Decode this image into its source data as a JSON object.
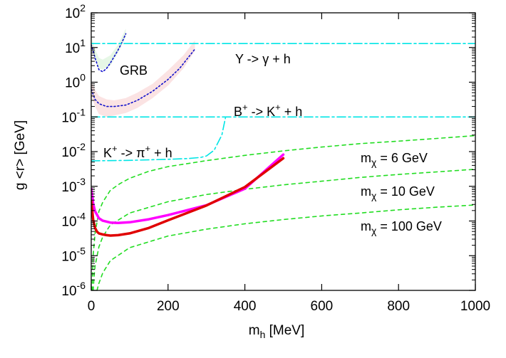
{
  "chart_data": {
    "type": "line",
    "title": "",
    "xlabel": {
      "main": "m",
      "sub": "h",
      "rest": " [MeV]"
    },
    "ylabel": "g <r> [GeV]",
    "xlim": [
      0,
      1000
    ],
    "ylim": [
      1e-06,
      100
    ],
    "yscale": "log",
    "grid": false,
    "legend": "none",
    "x_ticks": [
      {
        "value": 0,
        "label": "0"
      },
      {
        "value": 200,
        "label": "200"
      },
      {
        "value": 400,
        "label": "400"
      },
      {
        "value": 600,
        "label": "600"
      },
      {
        "value": 800,
        "label": "800"
      },
      {
        "value": 1000,
        "label": "1000"
      }
    ],
    "y_ticks": [
      {
        "value": 1e-06,
        "base": "10",
        "exp": "-6"
      },
      {
        "value": 1e-05,
        "base": "10",
        "exp": "-5"
      },
      {
        "value": 0.0001,
        "base": "10",
        "exp": "-4"
      },
      {
        "value": 0.001,
        "base": "10",
        "exp": "-3"
      },
      {
        "value": 0.01,
        "base": "10",
        "exp": "-2"
      },
      {
        "value": 0.1,
        "base": "10",
        "exp": "-1"
      },
      {
        "value": 1,
        "base": "10",
        "exp": "0"
      },
      {
        "value": 10,
        "base": "10",
        "exp": "1"
      },
      {
        "value": 100,
        "base": "10",
        "exp": "2"
      }
    ],
    "colors": {
      "bounds": "#00e5e5",
      "red": "#e00000",
      "magenta": "#ff00ff",
      "green": "#22dd22",
      "blue": "#1010cc",
      "green_band": "#e6f7e6",
      "pink_band": "#fbe3e3"
    },
    "annotations": {
      "upsilon": "Υ -> γ + h",
      "b_decay": {
        "a": "B",
        "a_sup": "+",
        "b": " -> K",
        "b_sup": "+",
        "c": " + h"
      },
      "k_decay": {
        "a": "K",
        "a_sup": "+",
        "b": " -> π",
        "b_sup": "+",
        "c": " + h"
      },
      "grb": "GRB",
      "m6": {
        "main": "m",
        "sub": "χ",
        "rest": " = 6 GeV"
      },
      "m10": {
        "main": "m",
        "sub": "χ",
        "rest": " = 10 GeV"
      },
      "m100": {
        "main": "m",
        "sub": "χ",
        "rest": " = 100 GeV"
      }
    },
    "series": [
      {
        "kind": "band",
        "color_key": "green_band",
        "x": [
          0,
          10,
          20,
          30,
          50,
          70,
          90,
          90,
          70,
          50,
          30,
          20,
          10,
          0
        ],
        "y": [
          12,
          5,
          2.5,
          2.3,
          3,
          7,
          20,
          35,
          12,
          6,
          4.5,
          5,
          9,
          22
        ]
      },
      {
        "kind": "band",
        "color_key": "pink_band",
        "x": [
          0,
          10,
          20,
          40,
          60,
          90,
          120,
          160,
          200,
          240,
          270,
          270,
          240,
          200,
          160,
          120,
          90,
          60,
          40,
          20,
          10,
          0
        ],
        "y": [
          0.4,
          0.2,
          0.12,
          0.1,
          0.11,
          0.13,
          0.18,
          0.35,
          0.8,
          2.5,
          8,
          16,
          6,
          2.2,
          0.9,
          0.5,
          0.35,
          0.3,
          0.32,
          0.4,
          0.6,
          1
        ]
      },
      {
        "kind": "line",
        "dash": "dot",
        "color_key": "blue",
        "x": [
          0,
          5,
          10,
          20,
          30,
          40,
          50,
          60,
          70,
          80,
          90
        ],
        "y": [
          12,
          8,
          5,
          2.3,
          2.0,
          2.5,
          3.6,
          5.5,
          8.5,
          14,
          25
        ]
      },
      {
        "kind": "line",
        "dash": "dot",
        "color_key": "blue",
        "x": [
          0,
          10,
          20,
          40,
          60,
          90,
          120,
          160,
          200,
          230,
          270
        ],
        "y": [
          0.62,
          0.32,
          0.24,
          0.2,
          0.2,
          0.22,
          0.3,
          0.55,
          1.2,
          2.5,
          9
        ]
      },
      {
        "kind": "line",
        "dash": "dashdot",
        "color_key": "bounds",
        "x": [
          0,
          1000
        ],
        "y": [
          13,
          13
        ]
      },
      {
        "kind": "line",
        "dash": "dashdot",
        "color_key": "bounds",
        "x": [
          0,
          1000
        ],
        "y": [
          0.1,
          0.1
        ]
      },
      {
        "kind": "line",
        "dash": "dashdot",
        "color_key": "bounds",
        "x": [
          0,
          100,
          200,
          250,
          285,
          300,
          320,
          340,
          350
        ],
        "y": [
          0.0054,
          0.0056,
          0.006,
          0.0063,
          0.0068,
          0.0075,
          0.011,
          0.03,
          0.1
        ]
      },
      {
        "kind": "line",
        "dash": "dash",
        "color_key": "green",
        "x": [
          2,
          5,
          10,
          20,
          30,
          50,
          75,
          100,
          150,
          200,
          300,
          400,
          500,
          600,
          700,
          800,
          900,
          1000
        ],
        "y": [
          1e-06,
          1e-05,
          4.5e-05,
          0.00019,
          0.00035,
          0.00077,
          0.0012,
          0.0017,
          0.0027,
          0.0037,
          0.0055,
          0.0078,
          0.0105,
          0.0135,
          0.017,
          0.02,
          0.024,
          0.029
        ]
      },
      {
        "kind": "line",
        "dash": "dash",
        "color_key": "green",
        "x": [
          5,
          8,
          10,
          20,
          30,
          50,
          100,
          200,
          300,
          400,
          500,
          600,
          700,
          800,
          900,
          1000
        ],
        "y": [
          1e-06,
          3e-06,
          5e-06,
          1.8e-05,
          3.5e-05,
          7.7e-05,
          0.00017,
          0.00036,
          0.00058,
          0.00082,
          0.0011,
          0.0014,
          0.0018,
          0.0022,
          0.0026,
          0.0031
        ]
      },
      {
        "kind": "line",
        "dash": "dash",
        "color_key": "green",
        "x": [
          15,
          20,
          30,
          50,
          100,
          200,
          300,
          400,
          500,
          600,
          700,
          800,
          900,
          1000
        ],
        "y": [
          1e-06,
          1.6e-06,
          3.2e-06,
          7.2e-06,
          1.7e-05,
          3.7e-05,
          5.8e-05,
          8.3e-05,
          0.00011,
          0.00014,
          0.00017,
          0.00021,
          0.00025,
          0.00029
        ]
      },
      {
        "kind": "line",
        "dash": "solid",
        "color_key": "magenta",
        "width": 3.5,
        "x": [
          0,
          3,
          5,
          10,
          20,
          30,
          50,
          70,
          100,
          150,
          200,
          300,
          400,
          500
        ],
        "y": [
          0.00085,
          0.0005,
          0.00032,
          0.00019,
          0.00012,
          0.000102,
          9e-05,
          8.8e-05,
          9.2e-05,
          0.000112,
          0.000148,
          0.000285,
          0.00085,
          0.0082
        ]
      },
      {
        "kind": "line",
        "dash": "solid",
        "color_key": "red",
        "width": 3.5,
        "x": [
          0,
          3,
          5,
          10,
          15,
          20,
          30,
          40,
          50,
          70,
          100,
          150,
          200,
          300,
          400,
          500
        ],
        "y": [
          0.00038,
          0.00018,
          0.00011,
          6.3e-05,
          4.9e-05,
          4.4e-05,
          4.1e-05,
          3.9e-05,
          3.8e-05,
          3.9e-05,
          4.4e-05,
          6.3e-05,
          0.000105,
          0.00028,
          0.00095,
          0.0064
        ]
      }
    ]
  }
}
